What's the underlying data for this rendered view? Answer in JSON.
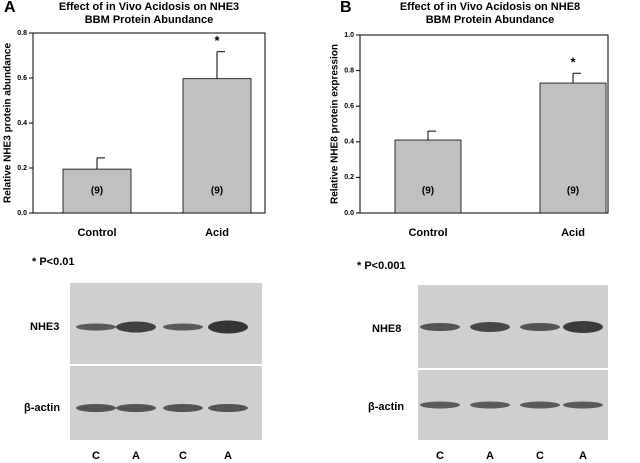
{
  "chart_data": [
    {
      "type": "bar",
      "panel_label": "A",
      "title": "Effect of in Vivo Acidosis on NHE3",
      "subtitle": "BBM Protein Abundance",
      "y_label": "Relative NHE3 protein abundance",
      "categories": [
        "Control",
        "Acid"
      ],
      "values": [
        0.195,
        0.597
      ],
      "errors": [
        0.05,
        0.12
      ],
      "color": "#c0c0c0",
      "n_labels": [
        "(9)",
        "(9)"
      ],
      "significance": [
        null,
        "*"
      ],
      "ylim": [
        0,
        0.8
      ],
      "yticks": [
        {
          "value": 0,
          "label": "0.0"
        },
        {
          "value": 0.2,
          "label": "0.2"
        },
        {
          "value": 0.4,
          "label": "0.4"
        },
        {
          "value": 0.6,
          "label": "0.6"
        },
        {
          "value": 0.8,
          "label": "0.8"
        }
      ],
      "note": "* P<0.01",
      "blot": {
        "bands": [
          "NHE3",
          "β-actin"
        ],
        "lanes": [
          "C",
          "A",
          "C",
          "A"
        ]
      }
    },
    {
      "type": "bar",
      "panel_label": "B",
      "title": "Effect of in Vivo Acidosis on NHE8",
      "subtitle": "BBM Protein Abundance",
      "y_label": "Relative NHE8 protein expression",
      "categories": [
        "Control",
        "Acid"
      ],
      "values": [
        0.41,
        0.73
      ],
      "errors": [
        0.05,
        0.055
      ],
      "color": "#c0c0c0",
      "n_labels": [
        "(9)",
        "(9)"
      ],
      "significance": [
        null,
        "*"
      ],
      "ylim": [
        0,
        1.0
      ],
      "yticks": [
        {
          "value": 0,
          "label": "0.0"
        },
        {
          "value": 0.2,
          "label": "0.2"
        },
        {
          "value": 0.4,
          "label": "0.4"
        },
        {
          "value": 0.6,
          "label": "0.6"
        },
        {
          "value": 0.8,
          "label": "0.8"
        },
        {
          "value": 1.0,
          "label": "1.0"
        }
      ],
      "note": "* P<0.001",
      "blot": {
        "bands": [
          "NHE8",
          "β-actin"
        ],
        "lanes": [
          "C",
          "A",
          "C",
          "A"
        ]
      }
    }
  ]
}
